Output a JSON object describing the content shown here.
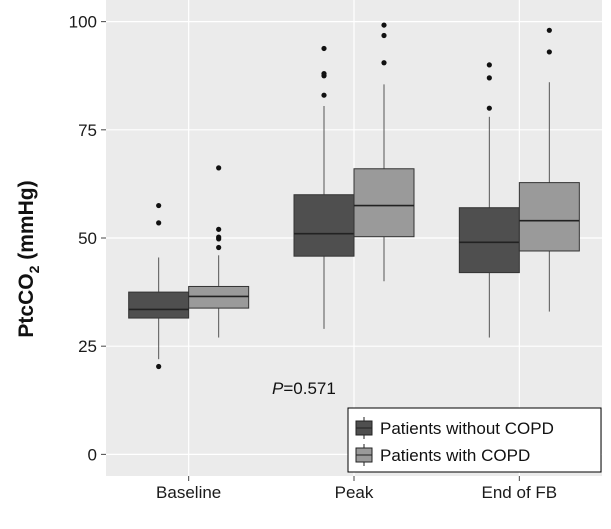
{
  "chart_data": {
    "type": "box",
    "ylabel": {
      "main": "PtcCO",
      "sub": "2",
      "unit": " (mmHg)"
    },
    "categories": [
      "Baseline",
      "Peak",
      "End of FB"
    ],
    "ylim": [
      -5,
      105
    ],
    "yticks": [
      0,
      25,
      50,
      75,
      100
    ],
    "grid": true,
    "legend_position": "bottom-right",
    "annotation": {
      "prefix": "P",
      "value": "=0.571"
    },
    "series": [
      {
        "name": "Patients without COPD",
        "color": "#4f4f4f",
        "boxes": [
          {
            "min": 22,
            "q1": 31.5,
            "median": 33.5,
            "q3": 37.5,
            "max": 45.5,
            "outliers": [
              20.3,
              53.5,
              57.5
            ]
          },
          {
            "min": 29,
            "q1": 45.8,
            "median": 51,
            "q3": 60,
            "max": 80.5,
            "outliers": [
              83,
              87.5,
              88,
              93.8
            ]
          },
          {
            "min": 27,
            "q1": 42,
            "median": 49,
            "q3": 57,
            "max": 78,
            "outliers": [
              80,
              87,
              90
            ]
          }
        ]
      },
      {
        "name": "Patients with COPD",
        "color": "#9a9a9a",
        "boxes": [
          {
            "min": 27,
            "q1": 33.8,
            "median": 36.5,
            "q3": 38.8,
            "max": 46,
            "outliers": [
              47.8,
              49.8,
              50.2,
              52,
              66.2
            ]
          },
          {
            "min": 40,
            "q1": 50.3,
            "median": 57.5,
            "q3": 66,
            "max": 85.5,
            "outliers": [
              90.5,
              96.8,
              99.2
            ]
          },
          {
            "min": 33,
            "q1": 47,
            "median": 54,
            "q3": 62.8,
            "max": 86,
            "outliers": [
              93,
              98
            ]
          }
        ]
      }
    ]
  }
}
